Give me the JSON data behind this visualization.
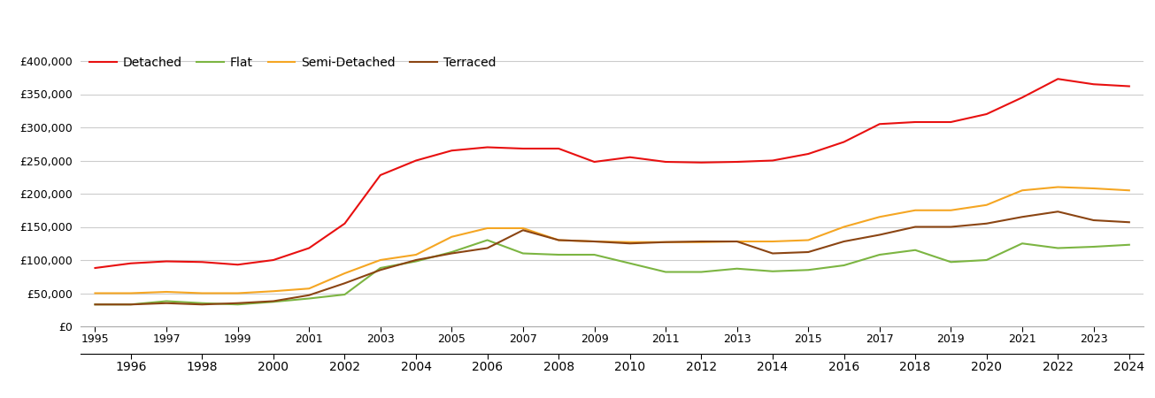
{
  "series": {
    "Detached": {
      "color": "#e81010",
      "years": [
        1995,
        1996,
        1997,
        1998,
        1999,
        2000,
        2001,
        2002,
        2003,
        2004,
        2005,
        2006,
        2007,
        2008,
        2009,
        2010,
        2011,
        2012,
        2013,
        2014,
        2015,
        2016,
        2017,
        2018,
        2019,
        2020,
        2021,
        2022,
        2023,
        2024
      ],
      "values": [
        88000,
        95000,
        98000,
        97000,
        93000,
        100000,
        118000,
        155000,
        228000,
        250000,
        265000,
        270000,
        268000,
        268000,
        248000,
        255000,
        248000,
        247000,
        248000,
        250000,
        260000,
        278000,
        305000,
        308000,
        308000,
        320000,
        345000,
        373000,
        365000,
        362000
      ]
    },
    "Flat": {
      "color": "#7cb542",
      "years": [
        1995,
        1996,
        1997,
        1998,
        1999,
        2000,
        2001,
        2002,
        2003,
        2004,
        2005,
        2006,
        2007,
        2008,
        2009,
        2010,
        2011,
        2012,
        2013,
        2014,
        2015,
        2016,
        2017,
        2018,
        2019,
        2020,
        2021,
        2022,
        2023,
        2024
      ],
      "values": [
        33000,
        33000,
        38000,
        35000,
        33000,
        37000,
        42000,
        48000,
        88000,
        98000,
        112000,
        130000,
        110000,
        108000,
        108000,
        95000,
        82000,
        82000,
        87000,
        83000,
        85000,
        92000,
        108000,
        115000,
        97000,
        100000,
        125000,
        118000,
        120000,
        123000
      ]
    },
    "Semi-Detached": {
      "color": "#f5a623",
      "years": [
        1995,
        1996,
        1997,
        1998,
        1999,
        2000,
        2001,
        2002,
        2003,
        2004,
        2005,
        2006,
        2007,
        2008,
        2009,
        2010,
        2011,
        2012,
        2013,
        2014,
        2015,
        2016,
        2017,
        2018,
        2019,
        2020,
        2021,
        2022,
        2023,
        2024
      ],
      "values": [
        50000,
        50000,
        52000,
        50000,
        50000,
        53000,
        57000,
        80000,
        100000,
        108000,
        135000,
        148000,
        148000,
        130000,
        128000,
        127000,
        127000,
        127000,
        128000,
        128000,
        130000,
        150000,
        165000,
        175000,
        175000,
        183000,
        205000,
        210000,
        208000,
        205000
      ]
    },
    "Terraced": {
      "color": "#8B4513",
      "years": [
        1995,
        1996,
        1997,
        1998,
        1999,
        2000,
        2001,
        2002,
        2003,
        2004,
        2005,
        2006,
        2007,
        2008,
        2009,
        2010,
        2011,
        2012,
        2013,
        2014,
        2015,
        2016,
        2017,
        2018,
        2019,
        2020,
        2021,
        2022,
        2023,
        2024
      ],
      "values": [
        33000,
        33000,
        35000,
        33000,
        35000,
        38000,
        47000,
        65000,
        85000,
        100000,
        110000,
        118000,
        145000,
        130000,
        128000,
        125000,
        127000,
        128000,
        128000,
        110000,
        112000,
        128000,
        138000,
        150000,
        150000,
        155000,
        165000,
        173000,
        160000,
        157000
      ]
    }
  },
  "xlim_min": 1994.6,
  "xlim_max": 2024.4,
  "ylim": [
    0,
    420000
  ],
  "yticks": [
    0,
    50000,
    100000,
    150000,
    200000,
    250000,
    300000,
    350000,
    400000
  ],
  "xticks_row1": [
    1995,
    1997,
    1999,
    2001,
    2003,
    2005,
    2007,
    2009,
    2011,
    2013,
    2015,
    2017,
    2019,
    2021,
    2023
  ],
  "xticks_row2": [
    1996,
    1998,
    2000,
    2002,
    2004,
    2006,
    2008,
    2010,
    2012,
    2014,
    2016,
    2018,
    2020,
    2022,
    2024
  ],
  "background_color": "#ffffff",
  "grid_color": "#cccccc",
  "line_width": 1.5
}
